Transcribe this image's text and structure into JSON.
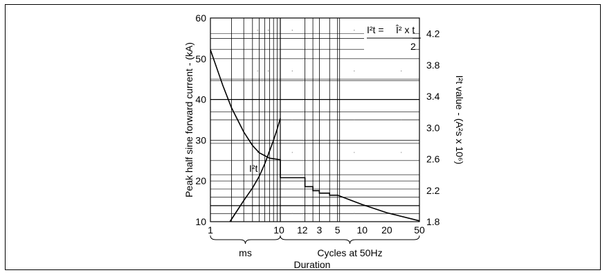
{
  "chart_data": {
    "type": "line",
    "ylabel_left": "Peak half sine forward current - (kA)",
    "ylabel_right": "I²t value - (A²s x 10⁶)",
    "xlabel": "Duration",
    "x_groups": [
      {
        "label": "ms",
        "ticks": [
          "1",
          "10"
        ]
      },
      {
        "label": "Cycles at 50Hz",
        "ticks": [
          "1",
          "2",
          "3",
          "5",
          "10",
          "20",
          "50"
        ]
      }
    ],
    "x_tick_labels": [
      "1",
      "10",
      "1",
      "2",
      "3",
      "5",
      "10",
      "20",
      "50"
    ],
    "y_left": {
      "min": 10,
      "max": 60,
      "ticks": [
        "10",
        "20",
        "30",
        "40",
        "50",
        "60"
      ]
    },
    "y_right": {
      "min": 1.8,
      "max": 4.4,
      "ticks": [
        "1.8",
        "2.2",
        "2.6",
        "3.0",
        "3.4",
        "3.8",
        "4.2"
      ]
    },
    "formula": {
      "lhs": "I²t =",
      "numerator": "Î² x t",
      "denominator": "2"
    },
    "series": [
      {
        "name": "peak current",
        "axis": "left",
        "points": [
          {
            "group": "ms",
            "x": 1,
            "y": 52.2
          },
          {
            "group": "ms",
            "x": 1.5,
            "y": 43.5
          },
          {
            "group": "ms",
            "x": 2,
            "y": 38.0
          },
          {
            "group": "ms",
            "x": 3,
            "y": 32.0
          },
          {
            "group": "ms",
            "x": 4,
            "y": 28.7
          },
          {
            "group": "ms",
            "x": 5,
            "y": 26.9
          },
          {
            "group": "ms",
            "x": 7,
            "y": 25.6
          },
          {
            "group": "ms",
            "x": 10,
            "y": 25.2
          },
          {
            "group": "cycles",
            "x": 1,
            "y": 25.2
          },
          {
            "group": "cycles",
            "x": 1,
            "y": 20.8
          },
          {
            "group": "cycles",
            "x": 2,
            "y": 20.8
          },
          {
            "group": "cycles",
            "x": 2,
            "y": 18.6
          },
          {
            "group": "cycles",
            "x": 2.5,
            "y": 18.6
          },
          {
            "group": "cycles",
            "x": 2.5,
            "y": 17.6
          },
          {
            "group": "cycles",
            "x": 3,
            "y": 17.6
          },
          {
            "group": "cycles",
            "x": 3,
            "y": 17.0
          },
          {
            "group": "cycles",
            "x": 4,
            "y": 17.0
          },
          {
            "group": "cycles",
            "x": 4,
            "y": 16.5
          },
          {
            "group": "cycles",
            "x": 5,
            "y": 16.5
          },
          {
            "group": "cycles",
            "x": 10,
            "y": 14.2
          },
          {
            "group": "cycles",
            "x": 20,
            "y": 12.2
          },
          {
            "group": "cycles",
            "x": 50,
            "y": 10.2
          }
        ]
      },
      {
        "name": "I²t",
        "label": "I²t",
        "axis": "right",
        "points": [
          {
            "group": "ms",
            "x": 1.9,
            "y": 1.8
          },
          {
            "group": "ms",
            "x": 3,
            "y": 2.07
          },
          {
            "group": "ms",
            "x": 4,
            "y": 2.23
          },
          {
            "group": "ms",
            "x": 5,
            "y": 2.38
          },
          {
            "group": "ms",
            "x": 6,
            "y": 2.54
          },
          {
            "group": "ms",
            "x": 7,
            "y": 2.7
          },
          {
            "group": "ms",
            "x": 8,
            "y": 2.84
          },
          {
            "group": "ms",
            "x": 9,
            "y": 2.98
          },
          {
            "group": "ms",
            "x": 10,
            "y": 3.12
          }
        ]
      }
    ],
    "grid": true
  }
}
